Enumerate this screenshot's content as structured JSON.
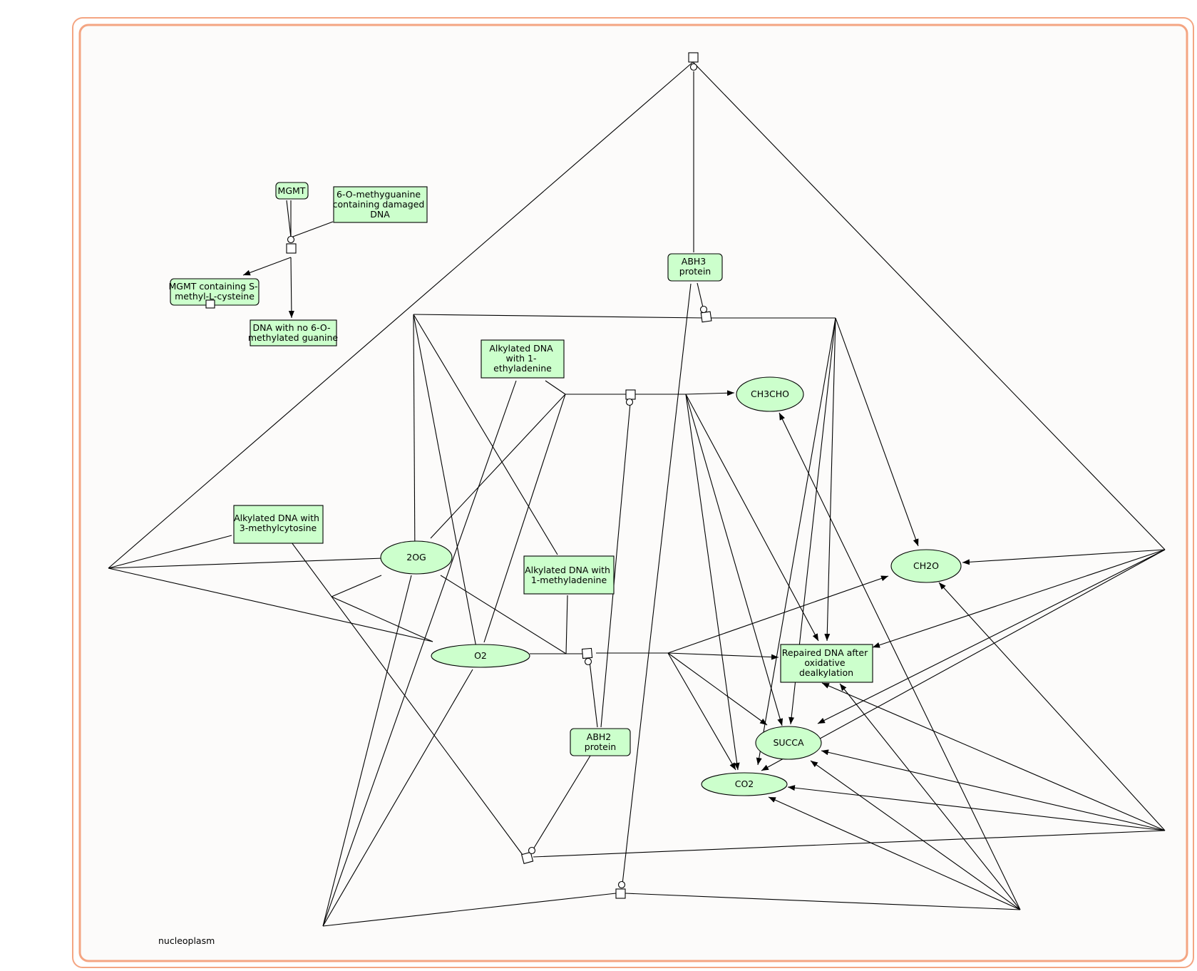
{
  "compartment": {
    "label": "nucleoplasm"
  },
  "nodes": {
    "mgmt": [
      "MGMT"
    ],
    "damaged_dna": [
      "6-O-methyguanine",
      "containing damaged",
      "DNA"
    ],
    "mgmt_cys": [
      "MGMT containing S-",
      "methyl-L-cysteine"
    ],
    "dna_no_og": [
      "DNA with no 6-O-",
      "methylated guanine"
    ],
    "abh3": [
      "ABH3",
      "protein"
    ],
    "ethyl": [
      "Alkylated DNA",
      "with 1-",
      "ethyladenine"
    ],
    "ch3cho": [
      "CH3CHO"
    ],
    "methylcytosine": [
      "Alkylated DNA with",
      "3-methylcytosine"
    ],
    "og": [
      "2OG"
    ],
    "methyladenine": [
      "Alkylated DNA with",
      "1-methyladenine"
    ],
    "ch2o": [
      "CH2O"
    ],
    "o2": [
      "O2"
    ],
    "repaired": [
      "Repaired DNA after",
      "oxidative",
      "dealkylation"
    ],
    "succa": [
      "SUCCA"
    ],
    "abh2": [
      "ABH2",
      "protein"
    ],
    "co2": [
      "CO2"
    ]
  }
}
